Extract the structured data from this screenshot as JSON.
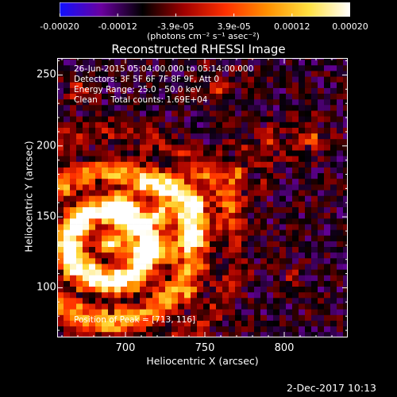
{
  "colorbar": {
    "tick_labels": [
      "-0.00020",
      "-0.00012",
      "-3.9e-05",
      "3.9e-05",
      "0.00012",
      "0.00020"
    ],
    "units_label": "(photons cm⁻² s⁻¹ asec⁻²)",
    "range": [
      -0.0002,
      0.0002
    ],
    "colors": [
      "#1010ff",
      "#6a00a0",
      "#000000",
      "#a00000",
      "#ff3000",
      "#ff9000",
      "#ffe040",
      "#ffffff"
    ]
  },
  "info": {
    "line1": "26-Jun-2015 05:04:00.000 to 05:14:00.000",
    "line2": "Detectors: 3F 5F 6F 7F 8F 9F, Att 0",
    "line3": "Energy Range: 25.0 - 50.0 keV",
    "line4": "Clean     Total counts: 1.69E+04",
    "peak": "Position of Peak = [713, 116]"
  },
  "footer": {
    "date": "2-Dec-2017 10:13"
  },
  "chart_data": {
    "type": "heatmap",
    "title": "Reconstructed RHESSI Image",
    "xlabel": "Heliocentric X (arcsec)",
    "ylabel": "Heliocentric Y (arcsec)",
    "xlim": [
      657,
      840
    ],
    "ylim": [
      65,
      262
    ],
    "x_ticks": [
      700,
      750,
      800
    ],
    "y_ticks": [
      100,
      150,
      200,
      250
    ],
    "grid": false,
    "peak_position": [
      713,
      116
    ],
    "features": [
      {
        "x": 690,
        "y": 130,
        "r": 42,
        "amp": 1.0
      },
      {
        "x": 720,
        "y": 150,
        "r": 22,
        "amp": 0.6
      },
      {
        "x": 745,
        "y": 160,
        "r": 14,
        "amp": 0.55
      },
      {
        "x": 770,
        "y": 180,
        "r": 12,
        "amp": 0.5
      },
      {
        "x": 790,
        "y": 205,
        "r": 10,
        "amp": 0.45
      },
      {
        "x": 815,
        "y": 205,
        "r": 10,
        "amp": 0.45
      },
      {
        "x": 760,
        "y": 240,
        "r": 10,
        "amp": 0.35
      },
      {
        "x": 670,
        "y": 240,
        "r": 8,
        "amp": 0.35
      },
      {
        "x": 805,
        "y": 110,
        "r": 8,
        "amp": 0.25
      },
      {
        "x": 740,
        "y": 95,
        "r": 10,
        "amp": 0.25
      },
      {
        "x": 690,
        "y": 70,
        "r": 12,
        "amp": 0.3
      }
    ]
  }
}
